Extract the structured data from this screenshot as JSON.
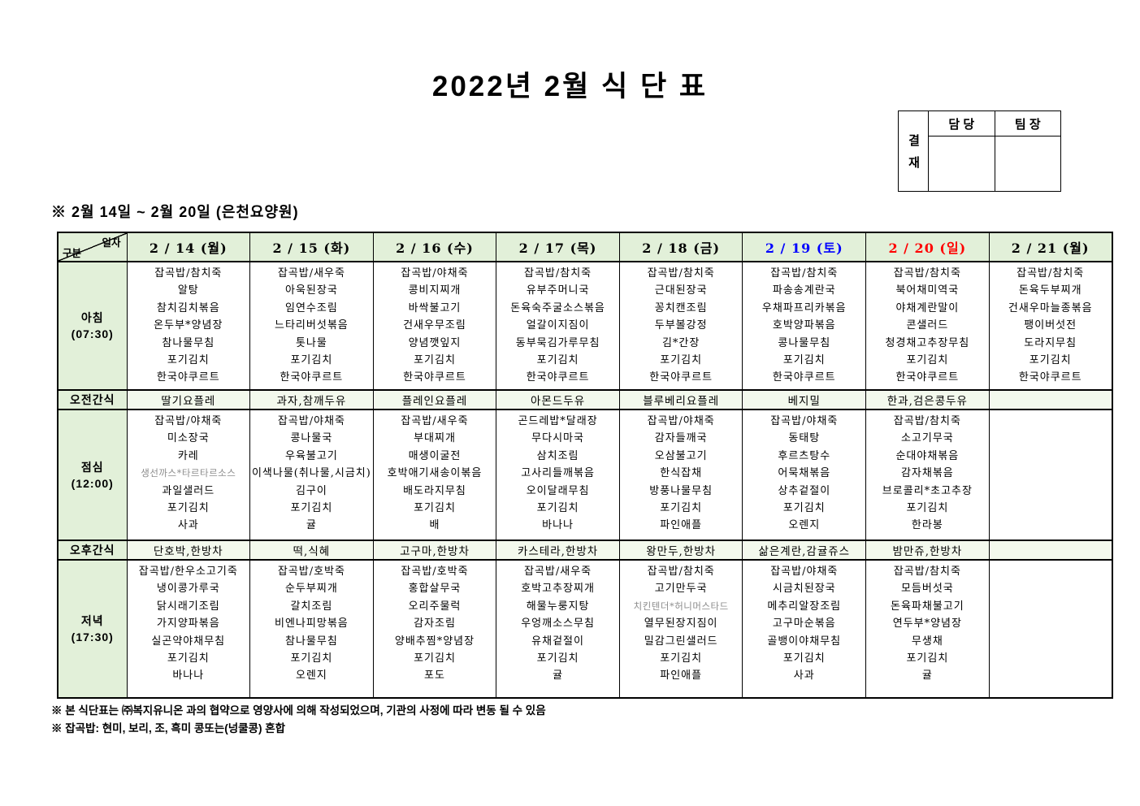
{
  "title": "2022년 2월 식 단 표",
  "approval": {
    "stamp_label": "결재",
    "columns": [
      "담 당",
      "팀 장"
    ]
  },
  "subtitle": "※ 2월 14일 ~ 2월 20일 (은천요양원)",
  "colors": {
    "header_bg": "#e2f0d9",
    "snack_bg": "#f3f9ed",
    "saturday": "#0000ff",
    "sunday": "#ff0000",
    "muted_text": "#8c8c8c"
  },
  "muted_items": [
    "생선까스*타르타르소스",
    "치킨텐더*허니머스타드"
  ],
  "table": {
    "corner": {
      "top": "일자",
      "bottom": "구분"
    },
    "days": [
      {
        "label": "2 / 14 (월)",
        "color": "#000000"
      },
      {
        "label": "2 / 15 (화)",
        "color": "#000000"
      },
      {
        "label": "2 / 16 (수)",
        "color": "#000000"
      },
      {
        "label": "2 / 17 (목)",
        "color": "#000000"
      },
      {
        "label": "2 / 18 (금)",
        "color": "#000000"
      },
      {
        "label": "2 / 19 (토)",
        "color": "#0000ff"
      },
      {
        "label": "2 / 20 (일)",
        "color": "#ff0000"
      },
      {
        "label": "2 / 21 (월)",
        "color": "#000000"
      }
    ],
    "rows": [
      {
        "key": "breakfast",
        "type": "meal",
        "label": "아침",
        "time": "(07:30)",
        "cells": [
          [
            "잡곡밥/참치죽",
            "알탕",
            "참치김치볶음",
            "온두부*양념장",
            "참나물무침",
            "포기김치",
            "한국야쿠르트"
          ],
          [
            "잡곡밥/새우죽",
            "아욱된장국",
            "임연수조림",
            "느타리버섯볶음",
            "톳나물",
            "포기김치",
            "한국야쿠르트"
          ],
          [
            "잡곡밥/야채죽",
            "콩비지찌개",
            "바싹불고기",
            "건새우무조림",
            "양념깻잎지",
            "포기김치",
            "한국야쿠르트"
          ],
          [
            "잡곡밥/참치죽",
            "유부주머니국",
            "돈육숙주굴소스볶음",
            "얼갈이지짐이",
            "동부묵김가루무침",
            "포기김치",
            "한국야쿠르트"
          ],
          [
            "잡곡밥/참치죽",
            "근대된장국",
            "꽁치캔조림",
            "두부볼강정",
            "김*간장",
            "포기김치",
            "한국야쿠르트"
          ],
          [
            "잡곡밥/참치죽",
            "파송송계란국",
            "우채파프리카볶음",
            "호박양파볶음",
            "콩나물무침",
            "포기김치",
            "한국야쿠르트"
          ],
          [
            "잡곡밥/참치죽",
            "북어채미역국",
            "야채계란말이",
            "콘샐러드",
            "청경채고추장무침",
            "포기김치",
            "한국야쿠르트"
          ],
          [
            "잡곡밥/참치죽",
            "돈육두부찌개",
            "건새우마늘종볶음",
            "팽이버섯전",
            "도라지무침",
            "포기김치",
            "한국야쿠르트"
          ]
        ]
      },
      {
        "key": "am-snack",
        "type": "snack",
        "label": "오전간식",
        "cells": [
          "딸기요플레",
          "과자,참깨두유",
          "플레인요플레",
          "아몬드두유",
          "블루베리요플레",
          "베지밀",
          "한과,검은콩두유",
          ""
        ]
      },
      {
        "key": "lunch",
        "type": "meal",
        "label": "점심",
        "time": "(12:00)",
        "cells": [
          [
            "잡곡밥/야채죽",
            "미소장국",
            "카레",
            "생선까스*타르타르소스",
            "과일샐러드",
            "포기김치",
            "사과"
          ],
          [
            "잡곡밥/야채죽",
            "콩나물국",
            "우육불고기",
            "이색나물(취나물,시금치)",
            "김구이",
            "포기김치",
            "귤"
          ],
          [
            "잡곡밥/새우죽",
            "부대찌개",
            "매생이굴전",
            "호박애기새송이볶음",
            "배도라지무침",
            "포기김치",
            "배"
          ],
          [
            "곤드레밥*달래장",
            "무다시마국",
            "삼치조림",
            "고사리들깨볶음",
            "오이달래무침",
            "포기김치",
            "바나나"
          ],
          [
            "잡곡밥/야채죽",
            "감자들깨국",
            "오삼불고기",
            "한식잡채",
            "방풍나물무침",
            "포기김치",
            "파인애플"
          ],
          [
            "잡곡밥/야채죽",
            "동태탕",
            "후르츠탕수",
            "어묵채볶음",
            "상추겉절이",
            "포기김치",
            "오렌지"
          ],
          [
            "잡곡밥/참치죽",
            "소고기무국",
            "순대야채볶음",
            "감자채볶음",
            "브로콜리*초고추장",
            "포기김치",
            "한라봉"
          ],
          []
        ]
      },
      {
        "key": "pm-snack",
        "type": "snack",
        "label": "오후간식",
        "cells": [
          "단호박,한방차",
          "떡,식혜",
          "고구마,한방차",
          "카스테라,한방차",
          "왕만두,한방차",
          "삶은계란,감귤쥬스",
          "밤만쥬,한방차",
          ""
        ]
      },
      {
        "key": "dinner",
        "type": "meal",
        "label": "저녁",
        "time": "(17:30)",
        "cells": [
          [
            "잡곡밥/한우소고기죽",
            "냉이콩가루국",
            "닭시래기조림",
            "가지양파볶음",
            "실곤약야채무침",
            "포기김치",
            "바나나"
          ],
          [
            "잡곡밥/호박죽",
            "순두부찌개",
            "갈치조림",
            "비엔나피망볶음",
            "참나물무침",
            "포기김치",
            "오렌지"
          ],
          [
            "잡곡밥/호박죽",
            "홍합살무국",
            "오리주물럭",
            "감자조림",
            "양배추찜*양념장",
            "포기김치",
            "포도"
          ],
          [
            "잡곡밥/새우죽",
            "호박고추장찌개",
            "해물누룽지탕",
            "우엉깨소스무침",
            "유채겉절이",
            "포기김치",
            "귤"
          ],
          [
            "잡곡밥/참치죽",
            "고기만두국",
            "치킨텐더*허니머스타드",
            "열무된장지짐이",
            "밀감그린샐러드",
            "포기김치",
            "파인애플"
          ],
          [
            "잡곡밥/야채죽",
            "시금치된장국",
            "메추리알장조림",
            "고구마순볶음",
            "골뱅이야채무침",
            "포기김치",
            "사과"
          ],
          [
            "잡곡밥/참치죽",
            "모듬버섯국",
            "돈육파채불고기",
            "연두부*양념장",
            "무생채",
            "포기김치",
            "귤"
          ],
          []
        ]
      }
    ]
  },
  "notes": [
    "※ 본 식단표는 ㈜복지유니온 과의 협약으로 영양사에 의해 작성되었으며, 기관의 사정에 따라 변동 될 수 있음",
    "※ 잡곡밥: 현미, 보리, 조, 흑미 콩또는(넝쿨콩) 혼합"
  ]
}
